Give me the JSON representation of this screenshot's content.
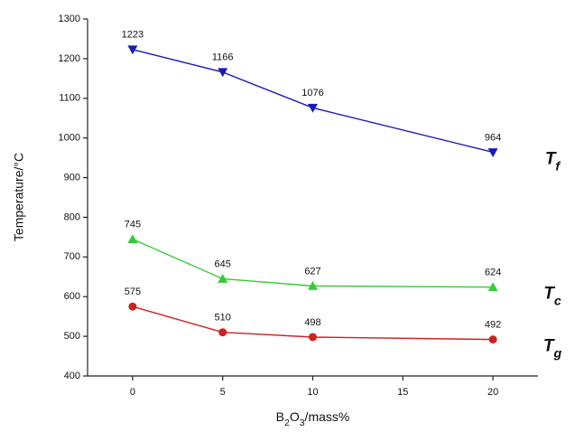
{
  "chart_data": {
    "type": "line",
    "x_label": "B2O3/mass%",
    "y_label": "Temperature/°C",
    "x": [
      0,
      5,
      10,
      20
    ],
    "series": [
      {
        "name": "Tf",
        "color": "#1a1ab8",
        "marker": "down-triangle",
        "values": [
          1223,
          1166,
          1076,
          964
        ]
      },
      {
        "name": "Tc",
        "color": "#33cc33",
        "marker": "up-triangle",
        "values": [
          745,
          645,
          627,
          624
        ]
      },
      {
        "name": "Tg",
        "color": "#cc2222",
        "marker": "circle",
        "values": [
          575,
          510,
          498,
          492
        ]
      }
    ],
    "xlim": [
      -2.5,
      22.5
    ],
    "xticks": [
      0,
      5,
      10,
      15,
      20
    ],
    "ylim": [
      400,
      1300
    ],
    "yticks": [
      400,
      500,
      600,
      700,
      800,
      900,
      1000,
      1100,
      1200,
      1300
    ]
  }
}
